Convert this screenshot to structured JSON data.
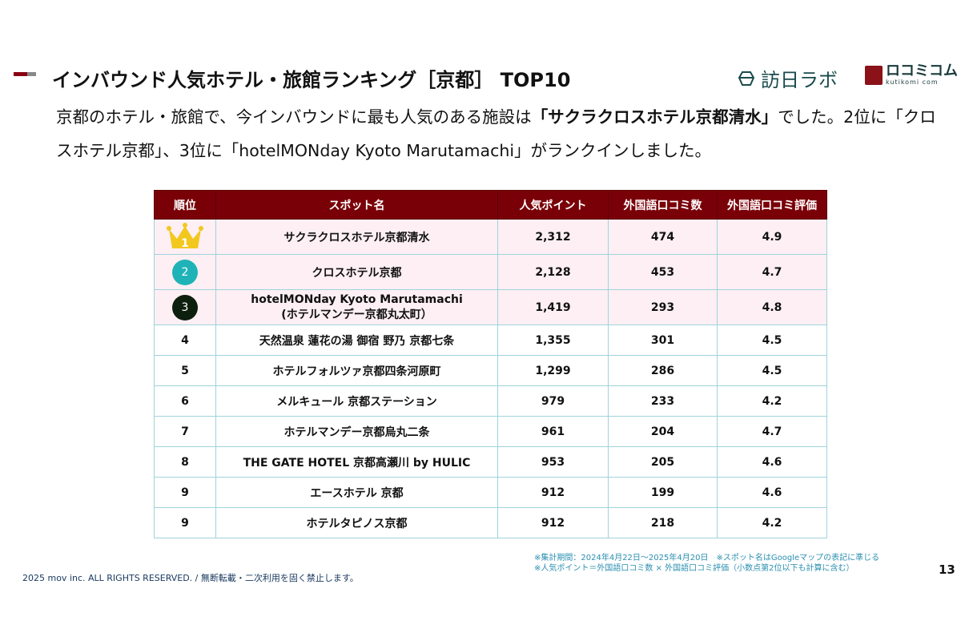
{
  "header": {
    "title": "インバウンド人気ホテル・旅館ランキング［京都］ TOP10",
    "logo_lab": "訪日ラボ",
    "logo_kuchikomi": "ロコミコム",
    "logo_kuchikomi_sub": "kutikomi com"
  },
  "description": {
    "part1": "京都のホテル・旅館で、今インバウンドに最も人気のある施設は",
    "highlight": "「サクラクロスホテル京都清水」",
    "part2": "でした。2位に「クロスホテル京都」、3位に「hotelMONday Kyoto Marutamachi」がランクインしました。"
  },
  "table": {
    "headers": [
      "順位",
      "スポット名",
      "人気ポイント",
      "外国語口コミ数",
      "外国語口コミ評価"
    ],
    "rows": [
      {
        "rank": "1",
        "name": "サクラクロスホテル京都清水",
        "points": "2,312",
        "reviews": "474",
        "rating": "4.9"
      },
      {
        "rank": "2",
        "name": "クロスホテル京都",
        "points": "2,128",
        "reviews": "453",
        "rating": "4.7"
      },
      {
        "rank": "3",
        "name": "hotelMONday Kyoto Marutamachi",
        "name2": "(ホテルマンデー京都丸太町）",
        "points": "1,419",
        "reviews": "293",
        "rating": "4.8"
      },
      {
        "rank": "4",
        "name": "天然温泉 蓮花の湯 御宿 野乃 京都七条",
        "points": "1,355",
        "reviews": "301",
        "rating": "4.5"
      },
      {
        "rank": "5",
        "name": "ホテルフォルツァ京都四条河原町",
        "points": "1,299",
        "reviews": "286",
        "rating": "4.5"
      },
      {
        "rank": "6",
        "name": "メルキュール 京都ステーション",
        "points": "979",
        "reviews": "233",
        "rating": "4.2"
      },
      {
        "rank": "7",
        "name": "ホテルマンデー京都烏丸二条",
        "points": "961",
        "reviews": "204",
        "rating": "4.7"
      },
      {
        "rank": "8",
        "name": "THE GATE HOTEL 京都高瀬川 by HULIC",
        "points": "953",
        "reviews": "205",
        "rating": "4.6"
      },
      {
        "rank": "9",
        "name": "エースホテル 京都",
        "points": "912",
        "reviews": "199",
        "rating": "4.6"
      },
      {
        "rank": "9",
        "name": "ホテルタピノス京都",
        "points": "912",
        "reviews": "218",
        "rating": "4.2"
      }
    ],
    "badge_colors": {
      "gold": "#f2c81e",
      "teal": "#1fb3b8",
      "dark": "#0d1f0d"
    }
  },
  "footer": {
    "note1": "※集計期間：2024年4月22日〜2025年4月20日　※スポット名はGoogleマップの表記に準じる",
    "note2": "※人気ポイント＝外国語口コミ数 × 外国語口コミ評価（小数点第2位以下も計算に含む）",
    "page": "13",
    "copyright": "2025 mov inc. ALL RIGHTS RESERVED. / 無断転載・二次利用を固く禁止します。"
  }
}
